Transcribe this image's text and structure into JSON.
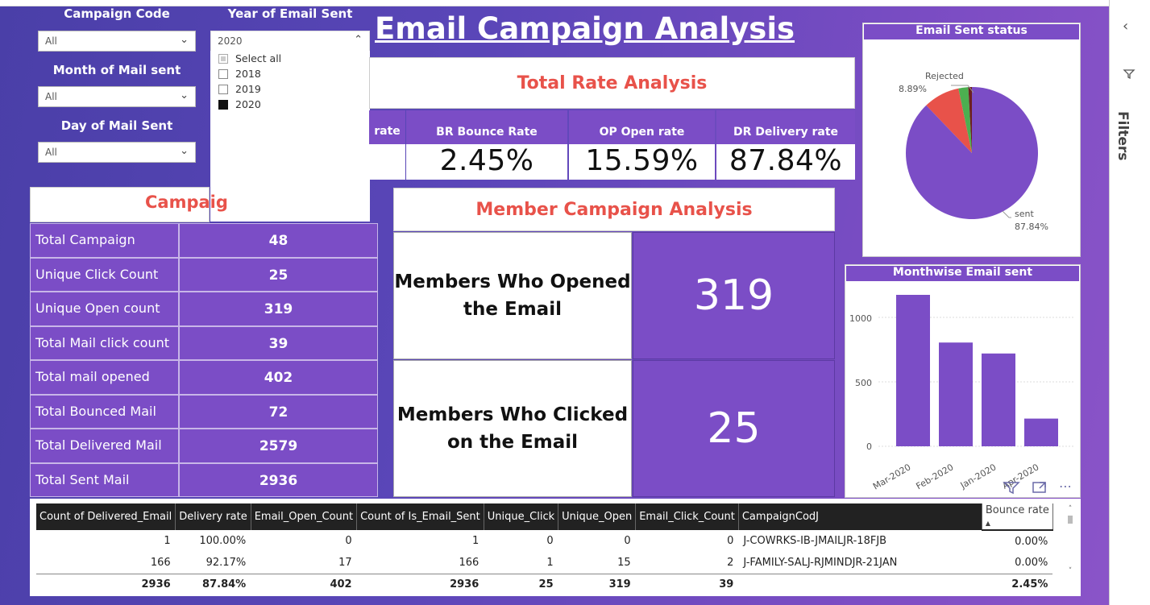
{
  "title": "Email Campaign Analysis",
  "slicers": {
    "campaign_code": {
      "label": "Campaign Code",
      "value": "All"
    },
    "year": {
      "label": "Year of Email Sent",
      "value": "2020",
      "options": [
        {
          "label": "Select all",
          "state": "partial"
        },
        {
          "label": "2018",
          "state": "unchecked"
        },
        {
          "label": "2019",
          "state": "unchecked"
        },
        {
          "label": "2020",
          "state": "checked"
        }
      ]
    },
    "month": {
      "label": "Month of Mail sent",
      "value": "All"
    },
    "day": {
      "label": "Day of Mail Sent",
      "value": "All"
    }
  },
  "total_rate": {
    "title": "Total Rate Analysis",
    "clipped_header": "rate",
    "kpis": [
      {
        "label": "BR Bounce Rate",
        "value": "2.45%"
      },
      {
        "label": "OP Open rate",
        "value": "15.59%"
      },
      {
        "label": "DR Delivery rate",
        "value": "87.84%"
      }
    ]
  },
  "campaign_table": {
    "title_visible": "Campaig",
    "rows": [
      {
        "label": "Total Campaign",
        "value": "48"
      },
      {
        "label": "Unique Click Count",
        "value": "25"
      },
      {
        "label": "Unique Open count",
        "value": "319"
      },
      {
        "label": "Total Mail click count",
        "value": "39"
      },
      {
        "label": "Total mail opened",
        "value": "402"
      },
      {
        "label": "Total Bounced Mail",
        "value": "72"
      },
      {
        "label": "Total Delivered Mail",
        "value": "2579"
      },
      {
        "label": "Total Sent Mail",
        "value": "2936"
      }
    ]
  },
  "member": {
    "title": "Member Campaign Analysis",
    "opened_label": "Members Who Opened the Email",
    "opened_value": "319",
    "clicked_label": "Members Who Clicked on the Email",
    "clicked_value": "25"
  },
  "pie": {
    "title": "Email Sent status",
    "rejected_label": "Rejected",
    "rejected_pct": "8.89%",
    "sent_label": "sent",
    "sent_pct": "87.84%"
  },
  "bar": {
    "title": "Monthwise Email sent",
    "y_ticks": [
      "1000",
      "500",
      "0"
    ],
    "x_labels": [
      "Mar-2020",
      "Feb-2020",
      "Jan-2020",
      "Apr-2020"
    ]
  },
  "chart_data": [
    {
      "type": "pie",
      "title": "Email Sent status",
      "categories": [
        "sent",
        "Rejected",
        "",
        ""
      ],
      "values": [
        87.84,
        8.89,
        2.4,
        0.87
      ],
      "colors": [
        "#7b4dc6",
        "#e8524a",
        "#4caf50",
        "#6b2020"
      ]
    },
    {
      "type": "bar",
      "title": "Monthwise Email sent",
      "categories": [
        "Mar-2020",
        "Feb-2020",
        "Jan-2020",
        "Apr-2020"
      ],
      "values": [
        1175,
        805,
        720,
        215
      ],
      "ylim": [
        0,
        1250
      ],
      "color": "#7b4dc6"
    }
  ],
  "detail_table": {
    "headers": [
      "Count of Delivered_Email",
      "Delivery rate",
      "Email_Open_Count",
      "Count of Is_Email_Sent",
      "Unique_Click",
      "Unique_Open",
      "Email_Click_Count",
      "CampaignCodJ",
      "Bounce rate"
    ],
    "rows": [
      [
        "1",
        "100.00%",
        "0",
        "1",
        "0",
        "0",
        "0",
        "J-COWRKS-IB-JMAILJR-18FJB",
        "0.00%"
      ],
      [
        "166",
        "92.17%",
        "17",
        "166",
        "1",
        "15",
        "2",
        "J-FAMILY-SALJ-RJMINDJR-21JAN",
        "0.00%"
      ]
    ],
    "total": [
      "2936",
      "87.84%",
      "402",
      "2936",
      "25",
      "319",
      "39",
      "",
      "2.45%"
    ]
  },
  "filters_pane": {
    "label": "Filters"
  }
}
